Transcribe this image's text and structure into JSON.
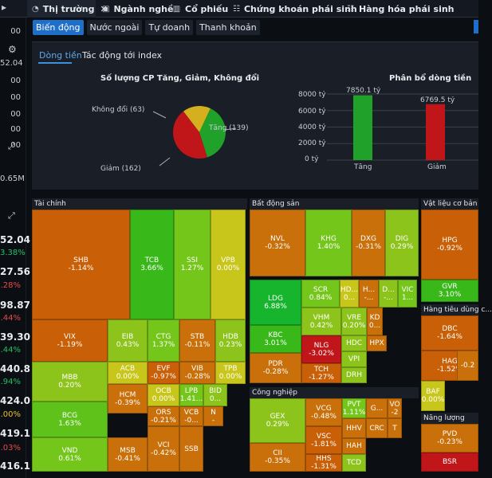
{
  "tabs": [
    {
      "label": "Thị trường",
      "icon": "pie-chart-icon",
      "active": true
    },
    {
      "label": "Ngành nghề",
      "icon": "video-icon"
    },
    {
      "label": "Cổ phiếu",
      "icon": "bar-chart-icon"
    },
    {
      "label": "Chứng khoán phái sinh",
      "icon": "list-chart-icon"
    },
    {
      "label": "Hàng hóa phái sinh",
      "icon": "list-chart-icon"
    }
  ],
  "sidebar": {
    "values": [
      "00",
      "52.04",
      "00",
      "00",
      "00",
      "00",
      "00",
      "0.65M",
      "52.04",
      "3.38%",
      "27.56",
      ".28%",
      "98.87",
      ".44%",
      "39.30",
      ".44%",
      "440.8",
      ".94%",
      "424.0",
      ".00%",
      "419.1",
      ".03%",
      "416.1"
    ],
    "icons": [
      "gear-icon",
      "expand-icon",
      "expand-icon-2"
    ]
  },
  "subtabs": [
    "Biến động",
    "Nước ngoài",
    "Tự doanh",
    "Thanh khoản"
  ],
  "panel": {
    "tabs": [
      "Dòng tiền",
      "Tác động tới index"
    ],
    "pie": {
      "title": "Số lượng CP Tăng, Giảm, Không đổi",
      "labels": [
        "Tăng (139)",
        "Giảm (162)",
        "Không đổi (63)"
      ]
    },
    "bar": {
      "title": "Phân bổ dòng tiền",
      "yticks": [
        "8000 tỷ",
        "6000 tỷ",
        "4000 tỷ",
        "2000 tỷ",
        "0 tỷ"
      ],
      "categories": [
        "Tăng",
        "Giảm"
      ],
      "value_labels": [
        "7850.1 tỷ",
        "6769.5 tỷ"
      ]
    }
  },
  "chart_data": [
    {
      "type": "pie",
      "title": "Số lượng CP Tăng, Giảm, Không đổi",
      "categories": [
        "Tăng",
        "Giảm",
        "Không đổi"
      ],
      "values": [
        139,
        162,
        63
      ],
      "colors": [
        "#1fa12a",
        "#c0161a",
        "#d4b01e"
      ]
    },
    {
      "type": "bar",
      "title": "Phân bổ dòng tiền",
      "categories": [
        "Tăng",
        "Giảm"
      ],
      "values": [
        7850.1,
        6769.5
      ],
      "ylim": [
        0,
        8000
      ],
      "colors": [
        "#1fa12a",
        "#c0161a"
      ]
    }
  ],
  "treemap": {
    "sectors": [
      "Tài chính",
      "Bất động sản",
      "Vật liệu cơ bản",
      "Hàng tiêu dùng c...",
      "Công nghiệp",
      "Năng lượng"
    ],
    "tiles": [
      {
        "t": "SHB",
        "v": "-1.14%",
        "c": "#c95f06"
      },
      {
        "t": "TCB",
        "v": "3.66%",
        "c": "#39b81a"
      },
      {
        "t": "SSI",
        "v": "1.27%",
        "c": "#75c61b"
      },
      {
        "t": "VPB",
        "v": "0.00%",
        "c": "#c9c61b"
      },
      {
        "t": "VIX",
        "v": "-1.19%",
        "c": "#c95f06"
      },
      {
        "t": "EIB",
        "v": "0.43%",
        "c": "#8dc41b"
      },
      {
        "t": "CTG",
        "v": "1.37%",
        "c": "#75c61b"
      },
      {
        "t": "STB",
        "v": "-0.11%",
        "c": "#c9700a"
      },
      {
        "t": "HDB",
        "v": "0.23%",
        "c": "#8dc41b"
      },
      {
        "t": "MBB",
        "v": "0.20%",
        "c": "#8dc41b"
      },
      {
        "t": "ACB",
        "v": "0.00%",
        "c": "#c9c61b"
      },
      {
        "t": "EVF",
        "v": "-0.97%",
        "c": "#c95f06"
      },
      {
        "t": "VIB",
        "v": "-0.28%",
        "c": "#c9700a"
      },
      {
        "t": "TPB",
        "v": "0.00%",
        "c": "#c9c61b"
      },
      {
        "t": "BCG",
        "v": "1.63%",
        "c": "#5fc21b"
      },
      {
        "t": "HCM",
        "v": "-0.39%",
        "c": "#c9700a"
      },
      {
        "t": "OCB",
        "v": "0.00%",
        "c": "#c9c61b"
      },
      {
        "t": "LPB",
        "v": "1.41...",
        "c": "#75c61b"
      },
      {
        "t": "BID",
        "v": "0...",
        "c": "#8dc41b"
      },
      {
        "t": "ORS",
        "v": "-0.21%",
        "c": "#c9700a"
      },
      {
        "t": "VCB",
        "v": "-0...",
        "c": "#c9700a"
      },
      {
        "t": "N",
        "v": "-",
        "c": "#c9700a"
      },
      {
        "t": "VND",
        "v": "0.61%",
        "c": "#75c61b"
      },
      {
        "t": "MSB",
        "v": "-0.41%",
        "c": "#c9700a"
      },
      {
        "t": "VCI",
        "v": "-0.42%",
        "c": "#c9700a"
      },
      {
        "t": "SSB",
        "v": "",
        "c": "#c9700a"
      },
      {
        "t": "NVL",
        "v": "-0.32%",
        "c": "#c9700a"
      },
      {
        "t": "KHG",
        "v": "1.40%",
        "c": "#75c61b"
      },
      {
        "t": "DXG",
        "v": "-0.31%",
        "c": "#c9700a"
      },
      {
        "t": "DIG",
        "v": "0.29%",
        "c": "#8dc41b"
      },
      {
        "t": "LDG",
        "v": "6.88%",
        "c": "#17b52e"
      },
      {
        "t": "SCR",
        "v": "0.84%",
        "c": "#75c61b"
      },
      {
        "t": "HD...",
        "v": "0...",
        "c": "#c9c61b"
      },
      {
        "t": "H...",
        "v": "-...",
        "c": "#c9700a"
      },
      {
        "t": "D...",
        "v": "-...",
        "c": "#8dc41b"
      },
      {
        "t": "VIC",
        "v": "1...",
        "c": "#75c61b"
      },
      {
        "t": "VHM",
        "v": "0.42%",
        "c": "#8dc41b"
      },
      {
        "t": "VRE",
        "v": "0.20%",
        "c": "#8dc41b"
      },
      {
        "t": "KD",
        "v": "0...",
        "c": "#c9700a"
      },
      {
        "t": "KBC",
        "v": "3.01%",
        "c": "#39b81a"
      },
      {
        "t": "HDC",
        "v": "",
        "c": "#8dc41b"
      },
      {
        "t": "HPX",
        "v": "",
        "c": "#c9700a"
      },
      {
        "t": "NLG",
        "v": "-3.02%",
        "c": "#c0161a"
      },
      {
        "t": "VPI",
        "v": "",
        "c": "#8dc41b"
      },
      {
        "t": "PDR",
        "v": "-0.28%",
        "c": "#c9700a"
      },
      {
        "t": "TCH",
        "v": "-1.27%",
        "c": "#c95f06"
      },
      {
        "t": "DRH",
        "v": "",
        "c": "#8dc41b"
      },
      {
        "t": "HPG",
        "v": "-0.92%",
        "c": "#c95f06"
      },
      {
        "t": "GVR",
        "v": "3.10%",
        "c": "#39b81a"
      },
      {
        "t": "DBC",
        "v": "-1.64%",
        "c": "#c95f06"
      },
      {
        "t": "HAG",
        "v": "-1.52%",
        "c": "#c95f06"
      },
      {
        "t": "-0.2",
        "v": "",
        "c": "#c9700a"
      },
      {
        "t": "BAF",
        "v": "0.00%",
        "c": "#c9c61b"
      },
      {
        "t": "GEX",
        "v": "0.29%",
        "c": "#8dc41b"
      },
      {
        "t": "VCG",
        "v": "-0.48%",
        "c": "#c9700a"
      },
      {
        "t": "PVT",
        "v": "1.11%",
        "c": "#75c61b"
      },
      {
        "t": "G...",
        "v": "",
        "c": "#c9700a"
      },
      {
        "t": "VO",
        "v": "-2",
        "c": "#c9700a"
      },
      {
        "t": "VSC",
        "v": "-1.81%",
        "c": "#c95f06"
      },
      {
        "t": "HHV",
        "v": "",
        "c": "#c9700a"
      },
      {
        "t": "CRC",
        "v": "",
        "c": "#c9700a"
      },
      {
        "t": "T",
        "v": "",
        "c": "#c9700a"
      },
      {
        "t": "HAH",
        "v": "",
        "c": "#c9700a"
      },
      {
        "t": "CII",
        "v": "-0.35%",
        "c": "#c9700a"
      },
      {
        "t": "HHS",
        "v": "-1.31%",
        "c": "#c95f06"
      },
      {
        "t": "TCD",
        "v": "",
        "c": "#8dc41b"
      },
      {
        "t": "PVD",
        "v": "-0.23%",
        "c": "#c9700a"
      },
      {
        "t": "BSR",
        "v": "",
        "c": "#c0161a"
      }
    ]
  }
}
